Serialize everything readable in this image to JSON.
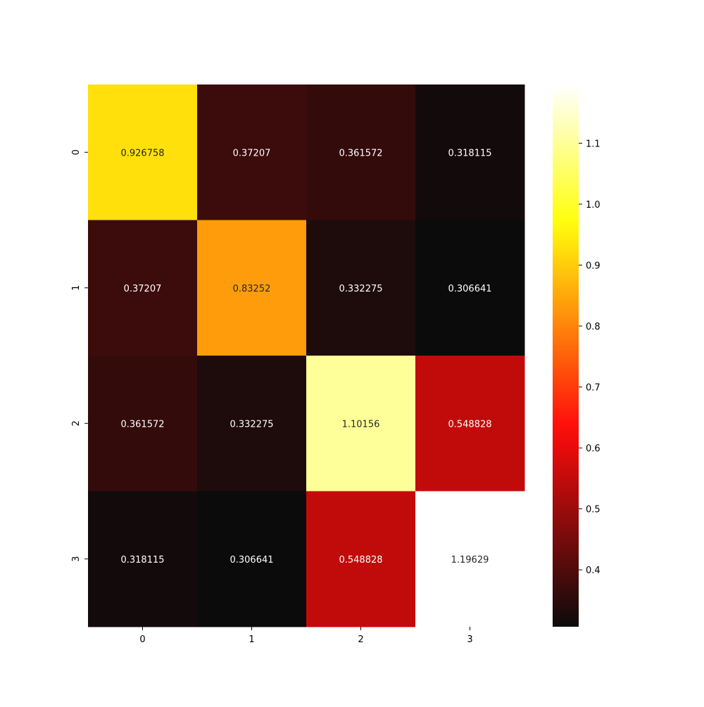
{
  "chart_data": {
    "type": "heatmap",
    "title": "",
    "xlabel": "",
    "ylabel": "",
    "x_categories": [
      "0",
      "1",
      "2",
      "3"
    ],
    "y_categories": [
      "0",
      "1",
      "2",
      "3"
    ],
    "values": [
      [
        0.926758,
        0.37207,
        0.361572,
        0.318115
      ],
      [
        0.37207,
        0.83252,
        0.332275,
        0.306641
      ],
      [
        0.361572,
        0.332275,
        1.10156,
        0.548828
      ],
      [
        0.318115,
        0.306641,
        0.548828,
        1.19629
      ]
    ],
    "cell_labels": [
      [
        "0.926758",
        "0.37207",
        "0.361572",
        "0.318115"
      ],
      [
        "0.37207",
        "0.83252",
        "0.332275",
        "0.306641"
      ],
      [
        "0.361572",
        "0.332275",
        "1.10156",
        "0.548828"
      ],
      [
        "0.318115",
        "0.306641",
        "0.548828",
        "1.19629"
      ]
    ],
    "colormap": "hot",
    "color_range": [
      0.306641,
      1.19629
    ],
    "colorbar": {
      "ticks": [
        0.4,
        0.5,
        0.6,
        0.7,
        0.8,
        0.9,
        1.0,
        1.1
      ],
      "tick_labels": [
        "0.4",
        "0.5",
        "0.6",
        "0.7",
        "0.8",
        "0.9",
        "1.0",
        "1.1"
      ],
      "placement": "right"
    },
    "grid": false
  }
}
